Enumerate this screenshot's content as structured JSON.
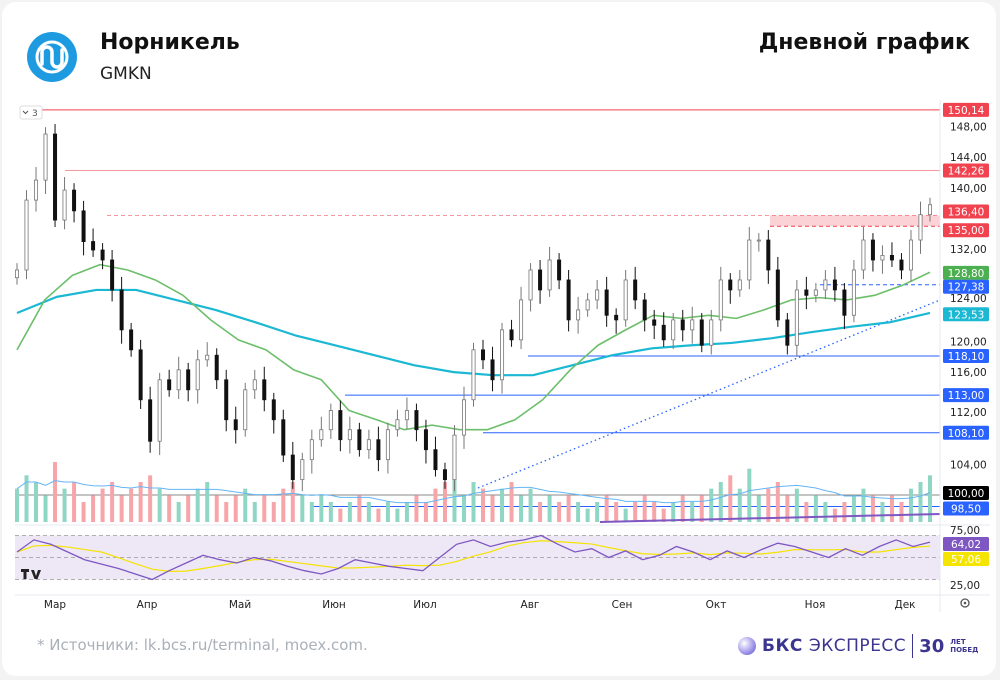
{
  "header": {
    "company": "Норникель",
    "ticker": "GMKN",
    "chart_title": "Дневной график"
  },
  "footer": {
    "sources": "*  Источники: lk.bcs.ru/terminal, moex.com.",
    "brand_bold": "БКС",
    "brand_rest": "ЭКСПРЕСС",
    "brand_30": "30",
    "brand_small1": "ЛЕТ",
    "brand_small2": "ПОБЕД"
  },
  "toolbar": {
    "collapse_label": "3"
  },
  "colors": {
    "brand_blue": "#1e9ae0",
    "down": "#111111",
    "up": "#8a8a8a",
    "ma_fast": "#6cbf6a",
    "ma_slow": "#1bb8d4",
    "red_level": "#f0424f",
    "blue_level": "#2962ff",
    "rsi": "#7e57c2",
    "rsi_signal": "#f5e400"
  },
  "chart_data": {
    "type": "candlestick",
    "ylim": [
      96,
      152
    ],
    "x_tick_labels": [
      "Мар",
      "Апр",
      "Май",
      "Июн",
      "Июл",
      "Авг",
      "Сен",
      "Окт",
      "Ноя",
      "Дек"
    ],
    "y_tick_labels": [
      "148,00",
      "144,00",
      "140,00",
      "132,00",
      "124,00",
      "120,00",
      "116,00",
      "112,00",
      "104,00"
    ],
    "closes": [
      129.3,
      138.4,
      141,
      147,
      135.8,
      139.7,
      137,
      133,
      131.9,
      130.6,
      126.7,
      121.5,
      118.9,
      112.4,
      107,
      115,
      113.7,
      116.3,
      113.7,
      117.6,
      118.2,
      115,
      109.8,
      108.5,
      113.7,
      115,
      112.4,
      109.8,
      105.2,
      102,
      104.6,
      107.2,
      108.5,
      111,
      107.2,
      108.5,
      105.9,
      107.2,
      104.6,
      108.5,
      109.8,
      111,
      108.5,
      105.9,
      103.3,
      102,
      107.8,
      112.4,
      118.9,
      117.6,
      115,
      121.5,
      120.2,
      125.4,
      129.3,
      126.7,
      130.6,
      128,
      122.8,
      124.1,
      125.4,
      126.7,
      123.4,
      122.8,
      128,
      125.4,
      122.8,
      122.1,
      120.2,
      122.8,
      121.5,
      122.8,
      119.5,
      122.8,
      128,
      126.7,
      128,
      133.2,
      133.2,
      129.3,
      122.8,
      119.5,
      126.7,
      126,
      126.7,
      128,
      126.7,
      123.4,
      129.3,
      133.2,
      130.6,
      131.2,
      130.6,
      129.3,
      133.2,
      136.5,
      137.8
    ],
    "volume": [
      5,
      7,
      6,
      4,
      9,
      5,
      6,
      3,
      4,
      5,
      6,
      4,
      5,
      6,
      7,
      5,
      4,
      3,
      4,
      5,
      6,
      4,
      3,
      4,
      5,
      3,
      4,
      3,
      5,
      6,
      4,
      3,
      4,
      3,
      2,
      3,
      4,
      3,
      2,
      3,
      2,
      3,
      4,
      3,
      5,
      6,
      7,
      4,
      6,
      5,
      4,
      5,
      6,
      4,
      5,
      3,
      4,
      3,
      4,
      3,
      2,
      3,
      4,
      3,
      2,
      3,
      4,
      3,
      2,
      3,
      4,
      3,
      4,
      5,
      6,
      7,
      5,
      8,
      4,
      5,
      6,
      4,
      5,
      3,
      4,
      3,
      2,
      3,
      4,
      5,
      4,
      3,
      4,
      3,
      5,
      6,
      7
    ],
    "ma_fast": [
      118.9,
      125.4,
      128.6,
      130,
      129.3,
      128,
      126,
      122.8,
      120.2,
      118.9,
      116.3,
      115,
      111,
      109.8,
      108.5,
      109.1,
      108.5,
      108.5,
      109.8,
      112.4,
      116.3,
      119.5,
      121.5,
      123.4,
      123,
      123.4,
      123,
      124.1,
      125.4,
      125.7,
      125.4,
      126,
      127.3,
      129
    ],
    "ma_slow": [
      123.7,
      125.8,
      126.7,
      126.7,
      125.4,
      124.1,
      122.5,
      120.8,
      119.5,
      118.2,
      116.9,
      116,
      115.6,
      115.6,
      116.9,
      118.2,
      119.1,
      119.5,
      119.8,
      120.4,
      121.2,
      121.9,
      122.5,
      123.7
    ],
    "levels": [
      {
        "value": 150.14,
        "label": "150,14",
        "color": "#f0424f",
        "style": "solid"
      },
      {
        "value": 142.26,
        "label": "142,26",
        "color": "#f0424f",
        "style": "solid"
      },
      {
        "value": 136.4,
        "label": "136,40",
        "color": "#f0424f",
        "style": "dashed"
      },
      {
        "value": 135.0,
        "label": "135,00",
        "color": "#f0424f",
        "style": "dashed"
      },
      {
        "value": 128.8,
        "label": "128,80",
        "color": "#4caf50",
        "style": "ma"
      },
      {
        "value": 127.38,
        "label": "127,38",
        "color": "#2962ff",
        "style": "dashed"
      },
      {
        "value": 123.53,
        "label": "123,53",
        "color": "#1bb8d4",
        "style": "ma"
      },
      {
        "value": 118.1,
        "label": "118,10",
        "color": "#2962ff",
        "style": "solid"
      },
      {
        "value": 113.0,
        "label": "113,00",
        "color": "#2962ff",
        "style": "solid"
      },
      {
        "value": 108.1,
        "label": "108,10",
        "color": "#2962ff",
        "style": "solid"
      },
      {
        "value": 100.0,
        "label": "100,00",
        "color": "#000000",
        "style": "solid"
      },
      {
        "value": 98.5,
        "label": "98,50",
        "color": "#2962ff",
        "style": "solid"
      }
    ],
    "rsi": {
      "ylim": [
        20,
        80
      ],
      "tick_labels": [
        "75,00",
        "25,00"
      ],
      "value_label": "64,02",
      "signal_label": "57,06",
      "values": [
        55,
        66,
        62,
        55,
        48,
        44,
        40,
        35,
        30,
        38,
        45,
        52,
        48,
        45,
        50,
        47,
        42,
        38,
        35,
        40,
        48,
        45,
        42,
        40,
        38,
        50,
        62,
        66,
        60,
        64,
        66,
        70,
        62,
        55,
        58,
        50,
        56,
        48,
        52,
        60,
        55,
        48,
        56,
        50,
        57,
        63,
        60,
        55,
        50,
        58,
        52,
        60,
        66,
        60,
        64
      ]
    }
  }
}
